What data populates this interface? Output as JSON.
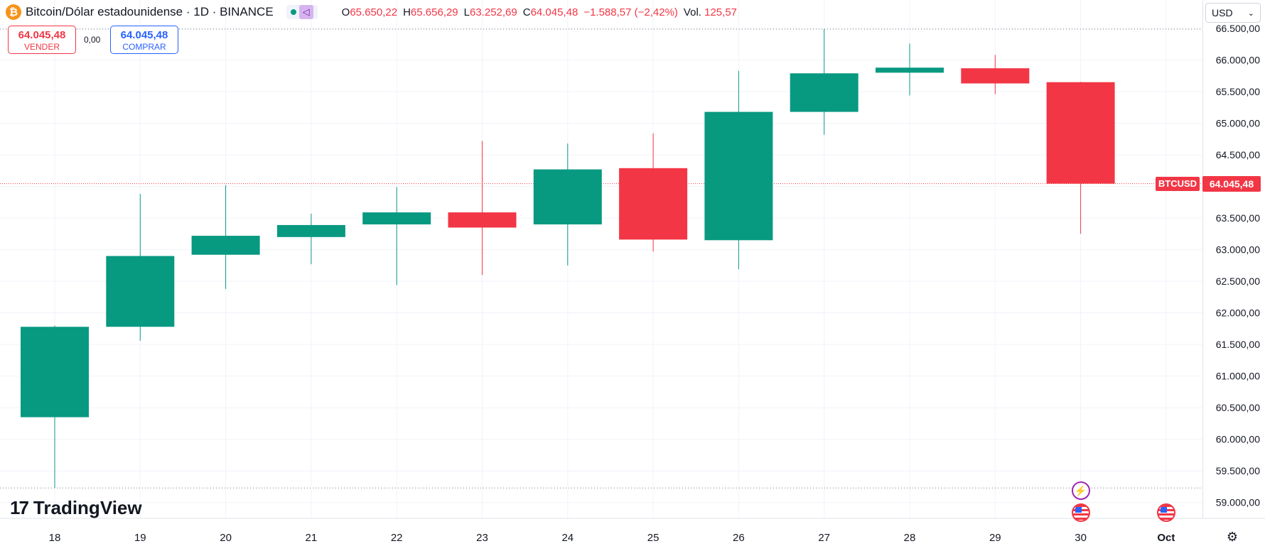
{
  "header": {
    "icon_glyph": "₿",
    "title": "Bitcoin/Dólar estadounidense · 1D · BINANCE",
    "ohlc": [
      {
        "key": "O",
        "value": "65.650,22"
      },
      {
        "key": "H",
        "value": "65.656,29"
      },
      {
        "key": "L",
        "value": "63.252,69"
      },
      {
        "key": "C",
        "value": "64.045,48"
      },
      {
        "key": "",
        "value": "−1.588,57 (−2,42%)"
      },
      {
        "key": "Vol.",
        "value": "125,57"
      }
    ]
  },
  "trade": {
    "sell_price": "64.045,48",
    "sell_label": "VENDER",
    "spread": "0,00",
    "buy_price": "64.045,48",
    "buy_label": "COMPRAR"
  },
  "currency_select": {
    "value": "USD",
    "chevron": "⌄"
  },
  "brand": {
    "mark": "17",
    "name": "TradingView"
  },
  "last_price_tag": "64.045,48",
  "symbol_tag": "BTCUSD",
  "settings_glyph": "⚙",
  "event_glyphs": {
    "lightning": "⚡"
  },
  "colors": {
    "up": "#089981",
    "down": "#f23645",
    "grid": "#f0f3fa",
    "text": "#131722"
  },
  "chart_data": {
    "type": "candlestick",
    "x_labels": [
      "18",
      "19",
      "20",
      "21",
      "22",
      "23",
      "24",
      "25",
      "26",
      "27",
      "28",
      "29",
      "30",
      "Oct"
    ],
    "candles": [
      {
        "date": "18",
        "open": 60350,
        "high": 61800,
        "low": 59230,
        "close": 61780
      },
      {
        "date": "19",
        "open": 61780,
        "high": 63880,
        "low": 61560,
        "close": 62900
      },
      {
        "date": "20",
        "open": 62920,
        "high": 64020,
        "low": 62380,
        "close": 63220
      },
      {
        "date": "21",
        "open": 63200,
        "high": 63570,
        "low": 62770,
        "close": 63390
      },
      {
        "date": "22",
        "open": 63400,
        "high": 63990,
        "low": 62440,
        "close": 63590
      },
      {
        "date": "23",
        "open": 63590,
        "high": 64720,
        "low": 62600,
        "close": 63350
      },
      {
        "date": "24",
        "open": 63400,
        "high": 64680,
        "low": 62750,
        "close": 64270
      },
      {
        "date": "25",
        "open": 64290,
        "high": 64840,
        "low": 62970,
        "close": 63160
      },
      {
        "date": "26",
        "open": 63150,
        "high": 65830,
        "low": 62690,
        "close": 65180
      },
      {
        "date": "27",
        "open": 65180,
        "high": 66490,
        "low": 64820,
        "close": 65790
      },
      {
        "date": "28",
        "open": 65800,
        "high": 66260,
        "low": 65440,
        "close": 65880
      },
      {
        "date": "29",
        "open": 65870,
        "high": 66080,
        "low": 65460,
        "close": 65630
      },
      {
        "date": "30",
        "open": 65650,
        "high": 65656,
        "low": 63252,
        "close": 64045
      }
    ],
    "y_ticks": [
      59000,
      59500,
      60000,
      60500,
      61000,
      61500,
      62000,
      62500,
      63000,
      63500,
      64000,
      64500,
      65000,
      65500,
      66000,
      66500
    ],
    "y_tick_labels": [
      "59.000,00",
      "59.500,00",
      "60.000,00",
      "60.500,00",
      "61.000,00",
      "61.500,00",
      "62.000,00",
      "62.500,00",
      "63.000,00",
      "63.500,00",
      "64.000,00",
      "64.500,00",
      "65.000,00",
      "65.500,00",
      "66.000,00",
      "66.500,00"
    ],
    "ylim": [
      58750,
      66950
    ],
    "range_high": 66490,
    "range_low": 59230,
    "last_price": 64045.48,
    "events": [
      {
        "date": "30",
        "kind": "lightning"
      },
      {
        "date": "30",
        "kind": "us-flag"
      },
      {
        "date": "Oct",
        "kind": "us-flag"
      }
    ],
    "grid": true
  }
}
